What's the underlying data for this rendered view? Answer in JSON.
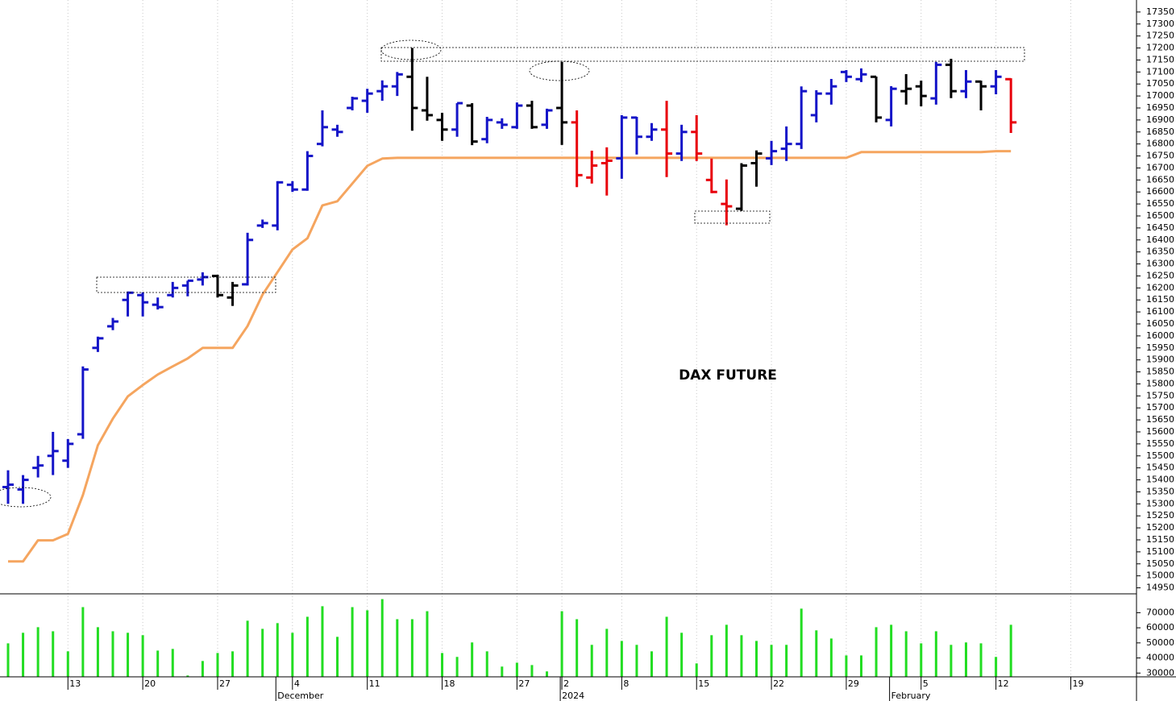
{
  "chart_data": [
    {
      "type": "ohlc",
      "title": "DAX FUTURE",
      "categories": [
        null,
        null,
        null,
        null,
        "13",
        null,
        null,
        null,
        null,
        "20",
        null,
        null,
        null,
        null,
        "27",
        null,
        null,
        null,
        null,
        "4",
        null,
        null,
        null,
        null,
        "11",
        null,
        null,
        null,
        null,
        "18",
        null,
        null,
        null,
        null,
        "27",
        null,
        null,
        "2",
        null,
        null,
        null,
        "8",
        null,
        null,
        null,
        null,
        "15",
        null,
        null,
        null,
        null,
        "22",
        null,
        null,
        null,
        null,
        "29",
        null,
        null,
        null,
        null,
        "5",
        null,
        null,
        null,
        null,
        "12",
        null,
        null,
        null,
        null,
        "19",
        null,
        null,
        null,
        null
      ],
      "period_labels": [
        null,
        null,
        null,
        null,
        null,
        null,
        null,
        null,
        null,
        null,
        null,
        null,
        null,
        null,
        null,
        null,
        null,
        null,
        "December",
        null,
        null,
        null,
        null,
        null,
        null,
        null,
        null,
        null,
        null,
        null,
        null,
        null,
        null,
        null,
        null,
        null,
        null,
        "2024",
        null,
        null,
        null,
        null,
        null,
        null,
        null,
        null,
        null,
        null,
        null,
        null,
        null,
        null,
        null,
        null,
        null,
        null,
        null,
        null,
        null,
        "February",
        null,
        null,
        null,
        null,
        null,
        null,
        null,
        null,
        null,
        null,
        null,
        null,
        null,
        null,
        null,
        null
      ],
      "open": [
        15370,
        15360,
        15450,
        15500,
        15480,
        15590,
        15950,
        16040,
        16150,
        16170,
        16130,
        16170,
        16210,
        16235,
        16250,
        16160,
        16215,
        16460,
        16460,
        16630,
        16610,
        16800,
        16860,
        16950,
        16980,
        17020,
        17040,
        17080,
        16940,
        16900,
        16860,
        16960,
        16820,
        16890,
        16870,
        16960,
        16880,
        16950,
        16890,
        16660,
        16720,
        16740,
        16910,
        16830,
        16860,
        16760,
        16850,
        16650,
        16550,
        16530,
        16720,
        16740,
        16780,
        16800,
        16920,
        17010,
        17100,
        17070,
        17080,
        16900,
        17020,
        17040,
        16990,
        17130,
        17020,
        17060,
        17040,
        17070,
        null,
        null,
        null,
        null,
        null,
        null,
        null,
        null
      ],
      "high": [
        15440,
        15420,
        15500,
        15600,
        15570,
        15873,
        15997,
        16075,
        16185,
        16182,
        16160,
        16225,
        16230,
        16265,
        16255,
        16225,
        16430,
        16485,
        16645,
        16645,
        16770,
        16940,
        16880,
        16997,
        17030,
        17065,
        17100,
        17200,
        17080,
        16930,
        16970,
        16970,
        16913,
        16907,
        16973,
        16980,
        16947,
        17142,
        16940,
        16772,
        16786,
        16920,
        16913,
        16887,
        16980,
        16880,
        16920,
        16739,
        16652,
        16720,
        16773,
        16813,
        16873,
        17040,
        17024,
        17071,
        17108,
        17115,
        17081,
        17041,
        17091,
        17064,
        17142,
        17155,
        17108,
        17064,
        17108,
        17074,
        null,
        null,
        null,
        null,
        null,
        null,
        null,
        null
      ],
      "low": [
        15300,
        15300,
        15410,
        15420,
        15450,
        15571,
        15933,
        16024,
        16081,
        16081,
        16110,
        16160,
        16165,
        16210,
        16160,
        16125,
        16210,
        16450,
        16440,
        16600,
        16605,
        16790,
        16830,
        16940,
        16930,
        16980,
        17000,
        16855,
        16897,
        16813,
        16830,
        16795,
        16803,
        16863,
        16863,
        16863,
        16863,
        16796,
        16620,
        16635,
        16585,
        16655,
        16756,
        16813,
        16662,
        16729,
        16729,
        16595,
        16461,
        16521,
        16622,
        16712,
        16729,
        16779,
        16890,
        16964,
        17058,
        17058,
        16890,
        16873,
        16964,
        16957,
        16964,
        16991,
        16991,
        16940,
        17007,
        16846,
        null,
        null,
        null,
        null,
        null,
        null,
        null,
        null
      ],
      "close": [
        15380,
        15400,
        15460,
        15520,
        15550,
        15860,
        15990,
        16060,
        16180,
        16140,
        16120,
        16200,
        16230,
        16245,
        16170,
        16210,
        16400,
        16470,
        16640,
        16610,
        16750,
        16870,
        16850,
        16990,
        17010,
        17040,
        17090,
        16950,
        16920,
        16860,
        16970,
        16810,
        16900,
        16880,
        16960,
        16870,
        16940,
        16890,
        16670,
        16710,
        16730,
        16910,
        16830,
        16860,
        16760,
        16850,
        16760,
        16600,
        16540,
        16710,
        16760,
        16770,
        16800,
        17020,
        17010,
        17040,
        17080,
        17090,
        16910,
        17030,
        17030,
        17000,
        17130,
        17020,
        17060,
        17040,
        17080,
        16890,
        null,
        null,
        null,
        null,
        null,
        null,
        null,
        null
      ],
      "bar_colors": [
        "#1414c8",
        "#1414c8",
        "#1414c8",
        "#1414c8",
        "#1414c8",
        "#1414c8",
        "#1414c8",
        "#1414c8",
        "#1414c8",
        "#1414c8",
        "#1414c8",
        "#1414c8",
        "#1414c8",
        "#1414c8",
        "#000000",
        "#000000",
        "#1414c8",
        "#1414c8",
        "#1414c8",
        "#1414c8",
        "#1414c8",
        "#1414c8",
        "#1414c8",
        "#1414c8",
        "#1414c8",
        "#1414c8",
        "#1414c8",
        "#000000",
        "#000000",
        "#000000",
        "#1414c8",
        "#000000",
        "#1414c8",
        "#1414c8",
        "#1414c8",
        "#000000",
        "#1414c8",
        "#000000",
        "#e8000b",
        "#e8000b",
        "#e8000b",
        "#1414c8",
        "#1414c8",
        "#1414c8",
        "#e8000b",
        "#1414c8",
        "#e8000b",
        "#e8000b",
        "#e8000b",
        "#000000",
        "#000000",
        "#1414c8",
        "#1414c8",
        "#1414c8",
        "#1414c8",
        "#1414c8",
        "#1414c8",
        "#1414c8",
        "#000000",
        "#1414c8",
        "#000000",
        "#000000",
        "#1414c8",
        "#000000",
        "#1414c8",
        "#000000",
        "#1414c8",
        "#e8000b",
        null,
        null,
        null,
        null,
        null,
        null,
        null,
        null
      ],
      "line_values": [
        15060,
        15060,
        15148,
        15148,
        15175,
        15336,
        15544,
        15655,
        15748,
        15795,
        15839,
        15873,
        15906,
        15950,
        15950,
        15950,
        16041,
        16172,
        16266,
        16360,
        16407,
        16544,
        16561,
        16635,
        16709,
        16739,
        16742,
        16742,
        16742,
        16742,
        16742,
        16742,
        16742,
        16742,
        16742,
        16742,
        16742,
        16742,
        16742,
        16742,
        16742,
        16742,
        16742,
        16742,
        16742,
        16742,
        16742,
        16742,
        16742,
        16742,
        16742,
        16742,
        16742,
        16742,
        16742,
        16742,
        16742,
        16766,
        16766,
        16766,
        16766,
        16766,
        16766,
        16766,
        16766,
        16766,
        16770,
        16770,
        null,
        null,
        null,
        null,
        null,
        null,
        null,
        null
      ],
      "line_color": "#f5a55f",
      "ylim": [
        14925,
        17400
      ],
      "yticks": [
        14950,
        15000,
        15050,
        15100,
        15150,
        15200,
        15250,
        15300,
        15350,
        15400,
        15450,
        15500,
        15550,
        15600,
        15650,
        15700,
        15750,
        15800,
        15850,
        15900,
        15950,
        16000,
        16050,
        16100,
        16150,
        16200,
        16250,
        16300,
        16350,
        16400,
        16450,
        16500,
        16550,
        16600,
        16650,
        16700,
        16750,
        16800,
        16850,
        16900,
        16950,
        17000,
        17050,
        17100,
        17150,
        17200,
        17250,
        17300,
        17350
      ],
      "grid": "vertical"
    },
    {
      "type": "bar",
      "values": [
        49700,
        56700,
        60400,
        57700,
        44400,
        73700,
        60400,
        57700,
        56700,
        55100,
        44900,
        46000,
        28400,
        38000,
        43300,
        44400,
        64700,
        59300,
        63100,
        56700,
        67300,
        74300,
        54000,
        73700,
        71600,
        79000,
        65700,
        65700,
        71000,
        43300,
        40700,
        50300,
        44400,
        34300,
        36900,
        35300,
        31100,
        71000,
        65700,
        48700,
        59300,
        51300,
        48700,
        44400,
        67300,
        56700,
        36400,
        55100,
        62000,
        55100,
        51300,
        48700,
        48700,
        72700,
        58300,
        52900,
        41700,
        41700,
        60400,
        62000,
        57700,
        49700,
        57700,
        48700,
        50300,
        49700,
        40700,
        62000,
        null,
        null,
        null,
        null,
        null,
        null,
        null,
        null
      ],
      "color": "#22dd22",
      "ylim": [
        27500,
        82500
      ],
      "yticks": [
        30000,
        40000,
        50000,
        60000,
        70000
      ]
    }
  ]
}
